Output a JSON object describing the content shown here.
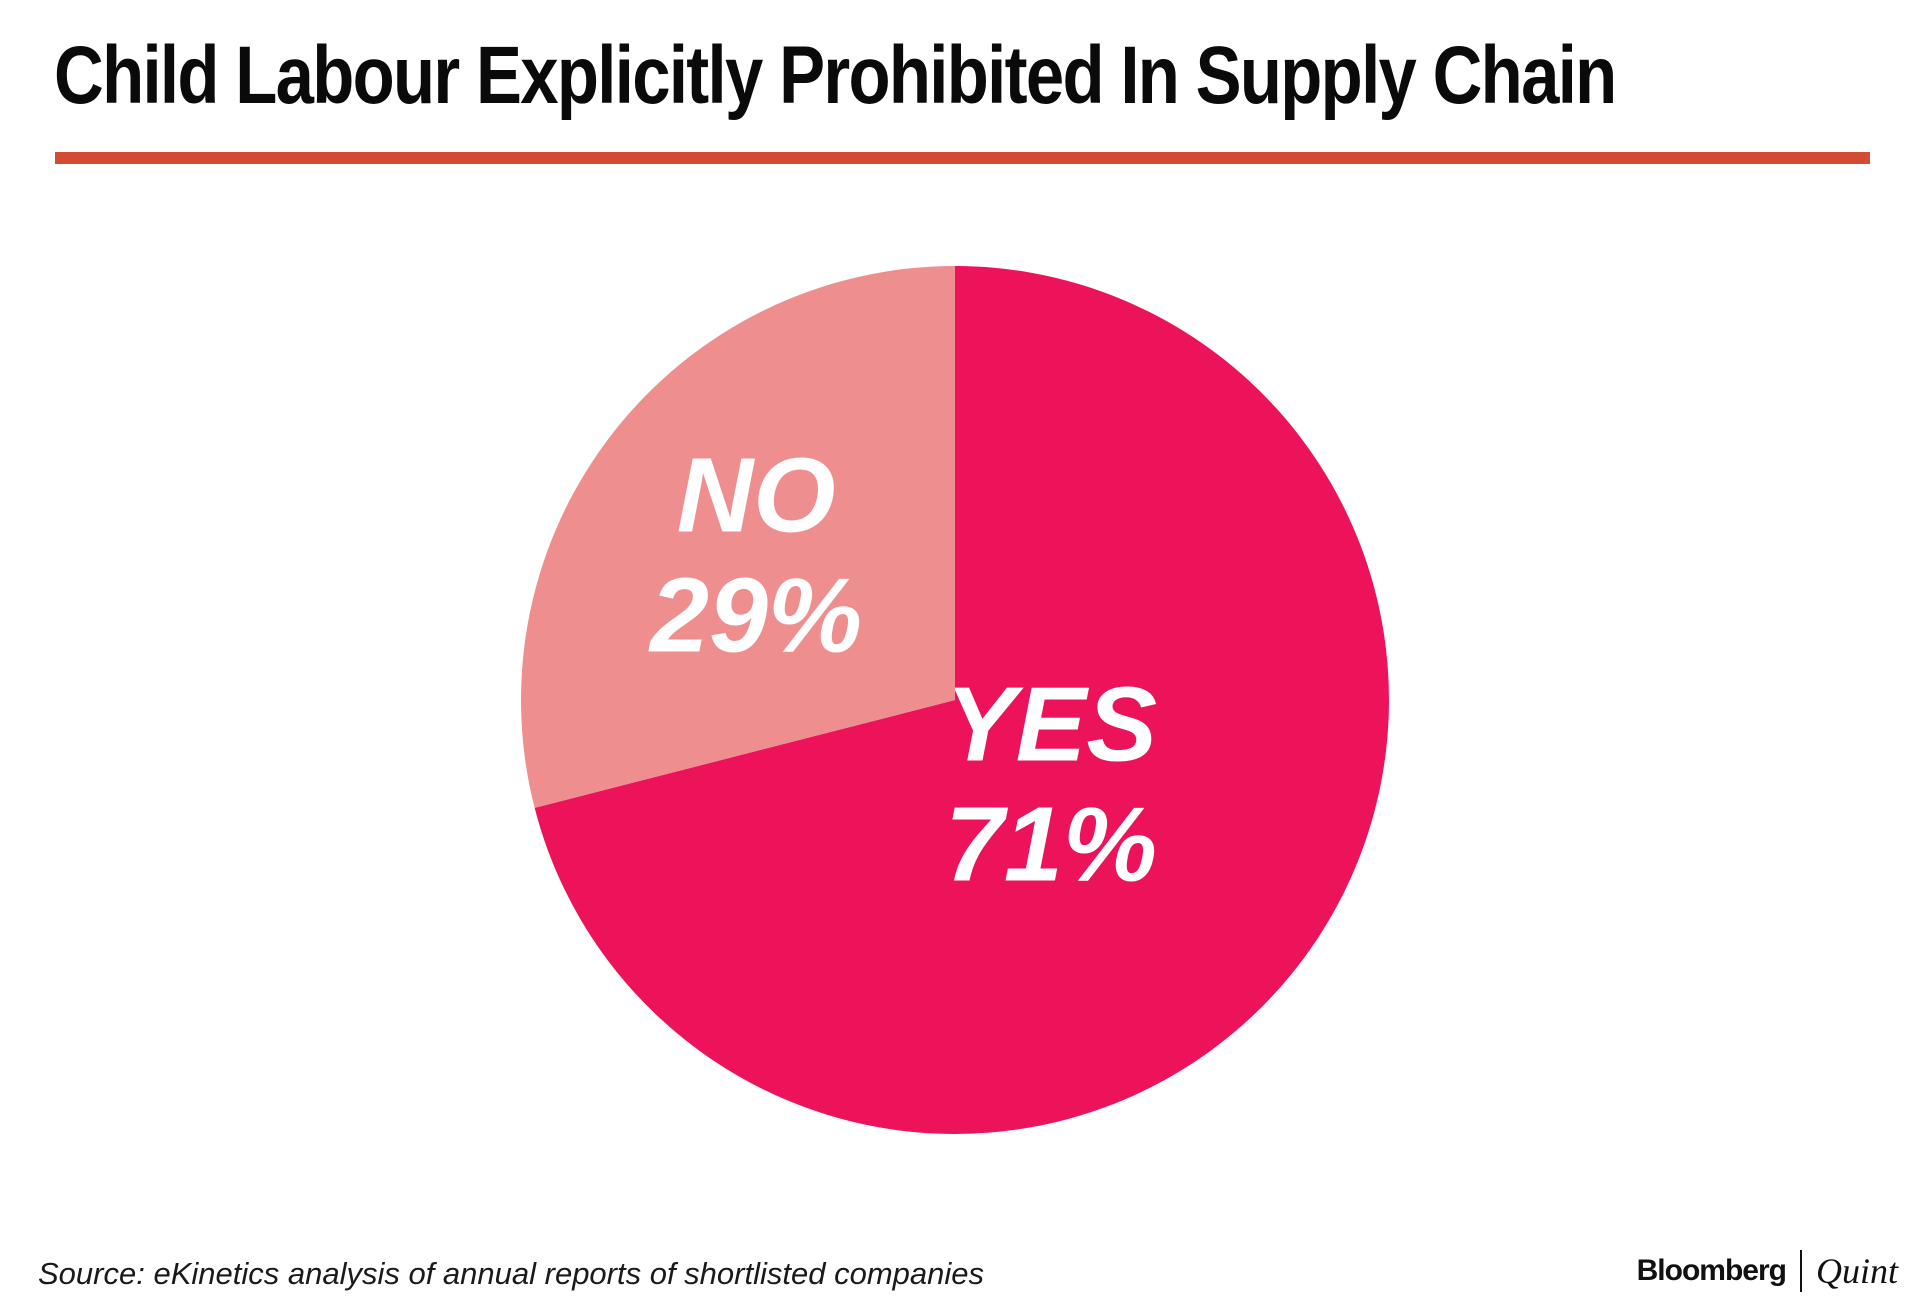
{
  "chart_data": {
    "type": "pie",
    "title": "Child Labour Explicitly Prohibited In Supply Chain",
    "slices": [
      {
        "label": "YES",
        "value": 71,
        "display": "71%",
        "color": "#ec135a"
      },
      {
        "label": "NO",
        "value": 29,
        "display": "29%",
        "color": "#ee8e8f"
      }
    ],
    "source": "Source: eKinetics analysis of annual reports of shortlisted companies"
  },
  "accent_rule_color": "#d24b32",
  "branding": {
    "bloomberg": "Bloomberg",
    "quint": "Quint"
  }
}
